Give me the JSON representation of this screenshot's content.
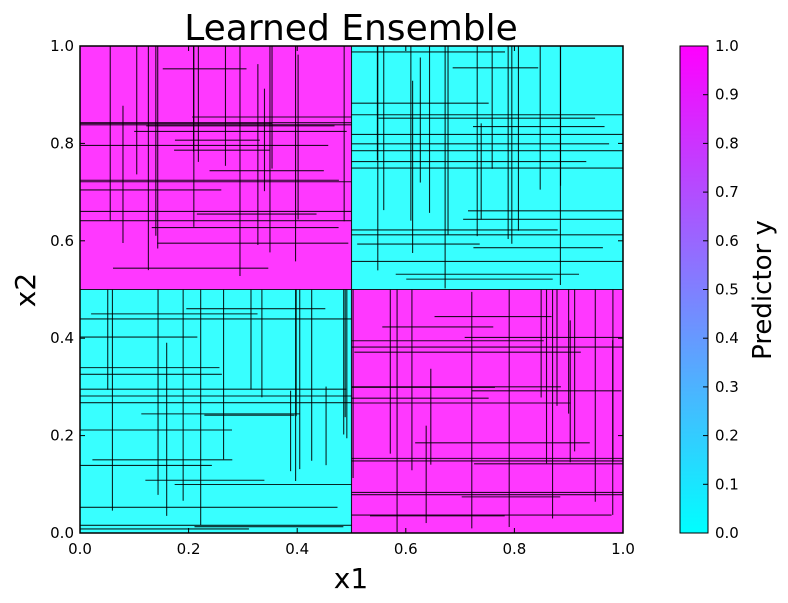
{
  "chart_data": {
    "type": "heatmap",
    "title": "Learned Ensemble",
    "xlabel": "x1",
    "ylabel": "x2",
    "xlim": [
      0,
      1
    ],
    "ylim": [
      0,
      1
    ],
    "x_ticks": [
      "0.0",
      "0.2",
      "0.4",
      "0.6",
      "0.8",
      "1.0"
    ],
    "y_ticks": [
      "0.0",
      "0.2",
      "0.4",
      "0.6",
      "0.8",
      "1.0"
    ],
    "regions": [
      {
        "x0": 0.0,
        "x1": 0.5,
        "y0": 0.5,
        "y1": 1.0,
        "value": 1.0
      },
      {
        "x0": 0.5,
        "x1": 1.0,
        "y0": 0.5,
        "y1": 1.0,
        "value": 0.0
      },
      {
        "x0": 0.0,
        "x1": 0.5,
        "y0": 0.0,
        "y1": 0.5,
        "value": 0.0
      },
      {
        "x0": 0.5,
        "x1": 1.0,
        "y0": 0.0,
        "y1": 0.5,
        "value": 1.0
      }
    ],
    "colorbar": {
      "label": "Predictor y",
      "range": [
        0,
        1
      ],
      "ticks": [
        "0.0",
        "0.1",
        "0.2",
        "0.3",
        "0.4",
        "0.5",
        "0.6",
        "0.7",
        "0.8",
        "0.9",
        "1.0"
      ],
      "colormap": "cool",
      "low_color": "#00ffff",
      "high_color": "#ff00ff"
    },
    "display_colors": {
      "low": "#38ffff",
      "high": "#ff38ff",
      "edge": "#000000"
    },
    "grid": false,
    "legend": "none"
  }
}
